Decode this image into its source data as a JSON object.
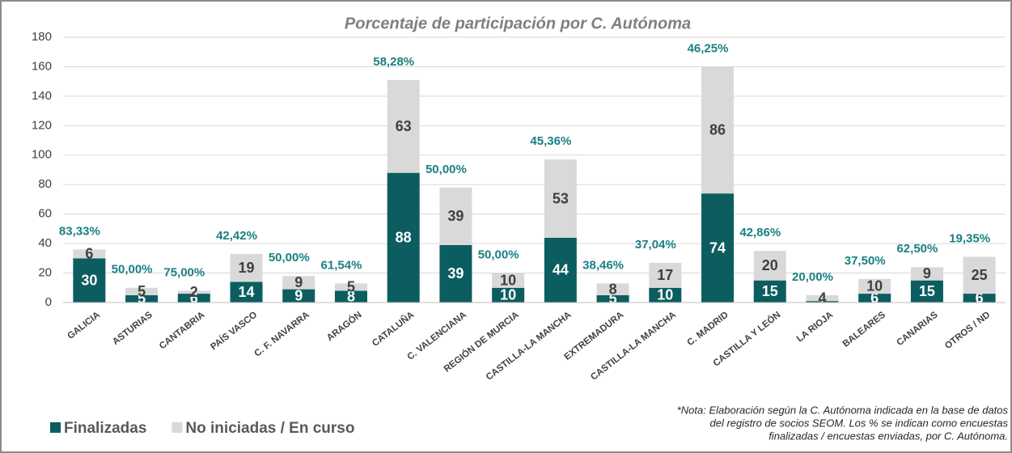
{
  "chart_data": {
    "type": "stacked_bar",
    "title": "Porcentaje de participación por C. Autónoma",
    "categories": [
      "GALICIA",
      "ASTURIAS",
      "CANTABRIA",
      "PAÍS VASCO",
      "C. F. NAVARRA",
      "ARAGÓN",
      "CATALUÑA",
      "C. VALENCIANA",
      "REGIÓN DE MURCIA",
      "CASTILLA-LA MANCHA",
      "EXTREMADURA",
      "CASTILLA-LA MANCHA",
      "C. MADRID",
      "CASTILLA Y LEÓN",
      "LA RIOJA",
      "BALEARES",
      "CANARIAS",
      "OTROS / ND"
    ],
    "series": [
      {
        "name": "Finalizadas",
        "color": "#0c5d60",
        "values": [
          30,
          5,
          6,
          14,
          9,
          8,
          88,
          39,
          10,
          44,
          5,
          10,
          74,
          15,
          1,
          6,
          15,
          6
        ]
      },
      {
        "name": "No iniciadas / En curso",
        "color": "#d9d9d9",
        "values": [
          6,
          5,
          2,
          19,
          9,
          5,
          63,
          39,
          10,
          53,
          8,
          17,
          86,
          20,
          4,
          10,
          9,
          25
        ]
      }
    ],
    "percentages": {
      "values": [
        83.33,
        50.0,
        75.0,
        42.42,
        50.0,
        61.54,
        58.28,
        50.0,
        50.0,
        45.36,
        38.46,
        37.04,
        46.25,
        42.86,
        20.0,
        37.5,
        62.5,
        19.35
      ],
      "value_labels": [
        "83,33%",
        "50,00%",
        "75,00%",
        "42,42%",
        "50,00%",
        "61,54%",
        "58,28%",
        "50,00%",
        "50,00%",
        "45,36%",
        "38,46%",
        "37,04%",
        "46,25%",
        "42,86%",
        "20,00%",
        "37,50%",
        "62,50%",
        "19,35%"
      ]
    },
    "ylim": [
      0,
      180
    ],
    "yticks": [
      0,
      20,
      40,
      60,
      80,
      100,
      120,
      140,
      160,
      180
    ],
    "grid": true,
    "legend": "bottom-left",
    "note": [
      "*Nota: Elaboración según la C. Autónoma indicada en la base de datos",
      "del registro de socios SEOM. Los % se indican como encuestas",
      "finalizadas / encuestas enviadas, por C. Autónoma."
    ]
  }
}
